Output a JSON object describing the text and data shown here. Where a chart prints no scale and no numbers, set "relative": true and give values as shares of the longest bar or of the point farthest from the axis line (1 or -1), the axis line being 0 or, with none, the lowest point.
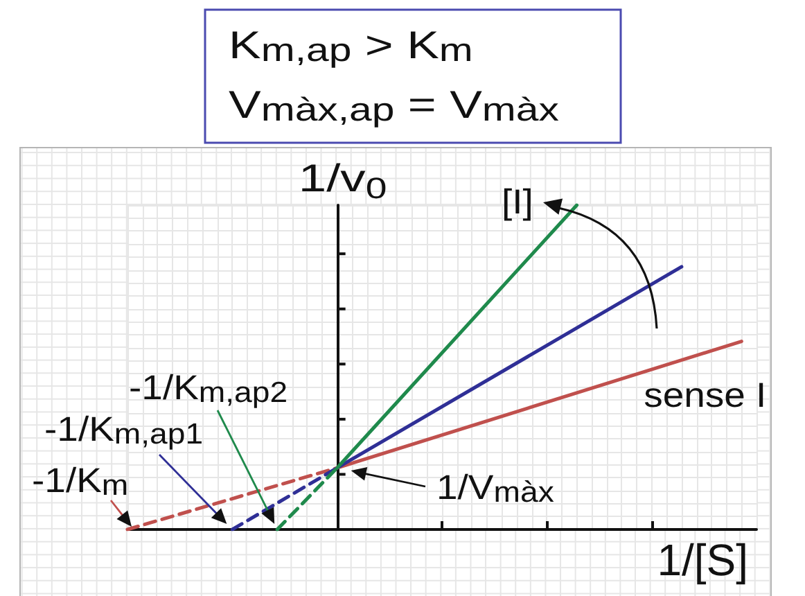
{
  "chart_data": {
    "type": "line",
    "title": "K$_{m,ap}$ > K$_{m}$\nV$_{màx,ap}$ = V$_{màx}$",
    "xlabel": "1/[S]",
    "ylabel": "1/v$_{0}$",
    "relative": true,
    "grid": true,
    "categories": [
      null,
      null,
      null,
      null,
      null,
      null,
      null,
      null,
      null,
      null,
      null,
      null,
      null,
      null,
      null,
      null,
      null,
      null,
      null,
      null,
      null,
      null,
      null,
      null,
      null,
      null,
      null,
      null,
      null,
      null,
      null,
      null,
      null,
      null,
      null,
      null,
      null,
      null,
      null,
      null,
      null,
      null,
      null
    ],
    "series": [
      {
        "color": "#c0504d",
        "line_style": "dashed",
        "values": [
          0,
          null,
          null,
          null,
          null,
          null,
          null,
          null,
          null,
          null,
          null,
          null,
          null,
          null,
          0.19,
          null,
          null,
          null,
          null,
          null,
          null,
          null,
          null,
          null,
          null,
          null,
          null,
          null,
          null,
          null,
          null,
          null,
          null,
          null,
          null,
          null,
          null,
          null,
          null,
          null,
          null,
          null,
          null
        ]
      },
      {
        "name": "sense I",
        "color": "#c0504d",
        "values": [
          null,
          null,
          null,
          null,
          null,
          null,
          null,
          null,
          null,
          null,
          null,
          null,
          null,
          null,
          0.19,
          null,
          null,
          null,
          null,
          null,
          null,
          null,
          null,
          null,
          null,
          null,
          null,
          null,
          null,
          null,
          null,
          null,
          null,
          null,
          null,
          null,
          null,
          null,
          null,
          null,
          null,
          0.58,
          null
        ]
      },
      {
        "color": "#2f2f96",
        "line_style": "dashed",
        "values": [
          null,
          null,
          null,
          null,
          null,
          null,
          null,
          0,
          null,
          null,
          null,
          null,
          null,
          null,
          0.19,
          null,
          null,
          null,
          null,
          null,
          null,
          null,
          null,
          null,
          null,
          null,
          null,
          null,
          null,
          null,
          null,
          null,
          null,
          null,
          null,
          null,
          null,
          null,
          null,
          null,
          null,
          null,
          null
        ]
      },
      {
        "color": "#2f2f96",
        "values": [
          null,
          null,
          null,
          null,
          null,
          null,
          null,
          null,
          null,
          null,
          null,
          null,
          null,
          null,
          0.19,
          null,
          null,
          null,
          null,
          null,
          null,
          null,
          null,
          null,
          null,
          null,
          null,
          null,
          null,
          null,
          null,
          null,
          null,
          null,
          null,
          null,
          null,
          0.81,
          null,
          null,
          null,
          null,
          null
        ]
      },
      {
        "color": "#1f8a4c",
        "line_style": "dashed",
        "values": [
          null,
          null,
          null,
          null,
          null,
          null,
          null,
          null,
          null,
          null,
          0,
          null,
          null,
          null,
          0.19,
          null,
          null,
          null,
          null,
          null,
          null,
          null,
          null,
          null,
          null,
          null,
          null,
          null,
          null,
          null,
          null,
          null,
          null,
          null,
          null,
          null,
          null,
          null,
          null,
          null,
          null,
          null,
          null
        ]
      },
      {
        "color": "#1f8a4c",
        "values": [
          null,
          null,
          null,
          null,
          null,
          null,
          null,
          null,
          null,
          null,
          null,
          null,
          null,
          null,
          0.19,
          null,
          null,
          null,
          null,
          null,
          null,
          null,
          null,
          null,
          null,
          null,
          null,
          null,
          null,
          null,
          1,
          null,
          null,
          null,
          null,
          null,
          null,
          null,
          null,
          null,
          null,
          null,
          null
        ]
      }
    ],
    "annotations": [
      "[I]",
      "-1/K$_{m,ap2}$",
      "-1/K$_{m,ap1}$",
      "-1/K$_{m}$",
      "1/V$_{màx}$"
    ]
  }
}
